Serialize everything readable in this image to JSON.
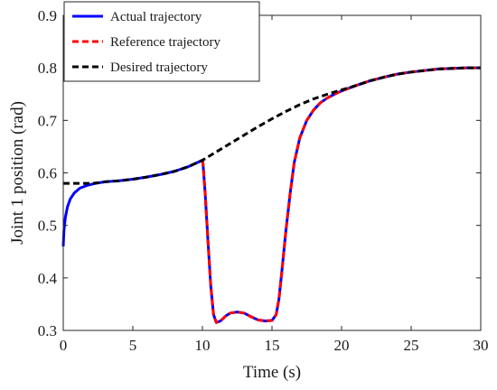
{
  "chart_data": {
    "type": "line",
    "xlabel": "Time (s)",
    "ylabel": "Joint 1 position (rad)",
    "xlim": [
      0,
      30
    ],
    "ylim": [
      0.3,
      0.9
    ],
    "xticks": [
      0,
      5,
      10,
      15,
      20,
      25,
      30
    ],
    "xtick_labels": [
      "0",
      "5",
      "10",
      "15",
      "20",
      "25",
      "30"
    ],
    "yticks": [
      0.3,
      0.4,
      0.5,
      0.6,
      0.7,
      0.8,
      0.9
    ],
    "ytick_labels": [
      "0.3",
      "0.4",
      "0.5",
      "0.6",
      "0.7",
      "0.8",
      "0.9"
    ],
    "grid": false,
    "legend_position": "top-left",
    "series": [
      {
        "name": "Actual trajectory",
        "color": "#0000ff",
        "style": "solid",
        "x": [
          0,
          0.05,
          0.15,
          0.3,
          0.5,
          0.8,
          1.2,
          1.7,
          2.3,
          3,
          4,
          5,
          6,
          7,
          8,
          9,
          10,
          10.05,
          10.2,
          10.4,
          10.6,
          10.8,
          11.0,
          11.3,
          11.7,
          12.0,
          12.5,
          13.0,
          13.5,
          14.0,
          14.5,
          15.0,
          15.3,
          15.5,
          15.7,
          16.0,
          16.3,
          16.6,
          17.0,
          17.5,
          18.0,
          18.5,
          19.0,
          19.5,
          20.0,
          21,
          22,
          23,
          24,
          25,
          26,
          27,
          28,
          29,
          30
        ],
        "values": [
          0.46,
          0.49,
          0.515,
          0.535,
          0.55,
          0.562,
          0.571,
          0.576,
          0.58,
          0.583,
          0.585,
          0.588,
          0.592,
          0.597,
          0.603,
          0.612,
          0.624,
          0.615,
          0.56,
          0.47,
          0.385,
          0.33,
          0.315,
          0.318,
          0.328,
          0.333,
          0.335,
          0.333,
          0.326,
          0.32,
          0.318,
          0.319,
          0.33,
          0.36,
          0.41,
          0.49,
          0.56,
          0.62,
          0.667,
          0.7,
          0.72,
          0.734,
          0.743,
          0.75,
          0.756,
          0.766,
          0.775,
          0.782,
          0.788,
          0.792,
          0.795,
          0.798,
          0.799,
          0.8,
          0.8
        ]
      },
      {
        "name": "Reference trajectory",
        "color": "#ff0000",
        "style": "dashed",
        "x": [
          10,
          10.05,
          10.2,
          10.4,
          10.6,
          10.8,
          11.0,
          11.3,
          11.7,
          12.0,
          12.5,
          13.0,
          13.5,
          14.0,
          14.5,
          15.0,
          15.3,
          15.5,
          15.7,
          16.0,
          16.3,
          16.6,
          17.0,
          17.5,
          18.0,
          18.5,
          19.0,
          19.5,
          20.0,
          21,
          22,
          23,
          24,
          25,
          26,
          27,
          28,
          29,
          30
        ],
        "values": [
          0.624,
          0.615,
          0.56,
          0.47,
          0.385,
          0.33,
          0.315,
          0.318,
          0.328,
          0.333,
          0.335,
          0.333,
          0.326,
          0.32,
          0.318,
          0.319,
          0.33,
          0.36,
          0.41,
          0.49,
          0.56,
          0.62,
          0.667,
          0.7,
          0.72,
          0.734,
          0.743,
          0.75,
          0.756,
          0.766,
          0.775,
          0.782,
          0.788,
          0.792,
          0.795,
          0.798,
          0.799,
          0.8,
          0.8
        ]
      },
      {
        "name": "Desired trajectory",
        "color": "#000000",
        "style": "dashed",
        "x": [
          0,
          1,
          2,
          2.5,
          3,
          4,
          5,
          6,
          7,
          8,
          9,
          10,
          11,
          12,
          13,
          14,
          15,
          16,
          17,
          18,
          19,
          20,
          21,
          22,
          23,
          24,
          25,
          26,
          27,
          28,
          29,
          30
        ],
        "values": [
          0.58,
          0.58,
          0.58,
          0.581,
          0.583,
          0.585,
          0.588,
          0.592,
          0.597,
          0.603,
          0.612,
          0.624,
          0.64,
          0.656,
          0.672,
          0.688,
          0.703,
          0.717,
          0.73,
          0.741,
          0.75,
          0.758,
          0.766,
          0.775,
          0.782,
          0.788,
          0.792,
          0.795,
          0.798,
          0.799,
          0.8,
          0.8
        ]
      }
    ]
  }
}
